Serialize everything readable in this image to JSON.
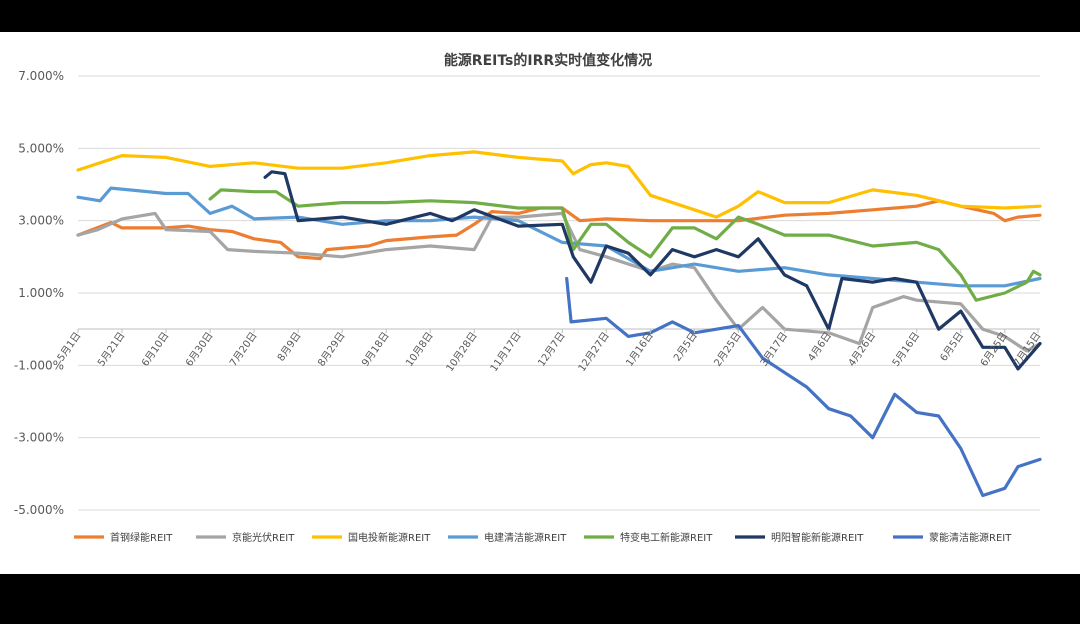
{
  "chart_data": {
    "type": "line",
    "title": "能源REITs的IRR实时值变化情况",
    "xlabel": "",
    "ylabel": "",
    "ylim": [
      -5.0,
      7.0
    ],
    "yticks": [
      "7.000%",
      "5.000%",
      "3.000%",
      "1.000%",
      "-1.000%",
      "-3.000%",
      "-5.000%"
    ],
    "ytick_values": [
      7,
      5,
      3,
      1,
      -1,
      -3,
      -5
    ],
    "xlim": [
      "2023-05-01",
      "2024-07-11"
    ],
    "xticks": [
      "5月1日",
      "5月21日",
      "6月10日",
      "6月30日",
      "7月20日",
      "8月9日",
      "8月29日",
      "9月18日",
      "10月8日",
      "10月28日",
      "11月17日",
      "12月7日",
      "12月27日",
      "1月16日",
      "2月5日",
      "2月25日",
      "3月17日",
      "4月6日",
      "4月26日",
      "5月16日",
      "6月5日",
      "6月25日",
      "7月15日"
    ],
    "xtick_dates": [
      "2023-05-01",
      "2023-05-21",
      "2023-06-10",
      "2023-06-30",
      "2023-07-20",
      "2023-08-09",
      "2023-08-29",
      "2023-09-18",
      "2023-10-08",
      "2023-10-28",
      "2023-11-17",
      "2023-12-07",
      "2023-12-27",
      "2024-01-16",
      "2024-02-05",
      "2024-02-25",
      "2024-03-17",
      "2024-04-06",
      "2024-04-26",
      "2024-05-16",
      "2024-06-05",
      "2024-06-25",
      "2024-07-15"
    ],
    "grid": true,
    "legend_position": "bottom",
    "series": [
      {
        "name": "首钢绿能REIT",
        "color": "#ED7D31",
        "points": [
          [
            "2023-05-01",
            2.6
          ],
          [
            "2023-05-16",
            2.95
          ],
          [
            "2023-05-21",
            2.8
          ],
          [
            "2023-06-10",
            2.8
          ],
          [
            "2023-06-20",
            2.85
          ],
          [
            "2023-06-30",
            2.75
          ],
          [
            "2023-07-10",
            2.7
          ],
          [
            "2023-07-20",
            2.5
          ],
          [
            "2023-08-01",
            2.4
          ],
          [
            "2023-08-09",
            2.0
          ],
          [
            "2023-08-19",
            1.95
          ],
          [
            "2023-08-22",
            2.2
          ],
          [
            "2023-09-10",
            2.3
          ],
          [
            "2023-09-18",
            2.45
          ],
          [
            "2023-10-08",
            2.55
          ],
          [
            "2023-10-20",
            2.6
          ],
          [
            "2023-10-28",
            2.9
          ],
          [
            "2023-11-05",
            3.25
          ],
          [
            "2023-11-17",
            3.2
          ],
          [
            "2023-11-27",
            3.35
          ],
          [
            "2023-12-07",
            3.35
          ],
          [
            "2023-12-15",
            3.0
          ],
          [
            "2023-12-27",
            3.05
          ],
          [
            "2024-01-16",
            3.0
          ],
          [
            "2024-02-05",
            3.0
          ],
          [
            "2024-02-25",
            3.0
          ],
          [
            "2024-03-17",
            3.15
          ],
          [
            "2024-04-06",
            3.2
          ],
          [
            "2024-04-26",
            3.3
          ],
          [
            "2024-05-16",
            3.4
          ],
          [
            "2024-05-26",
            3.55
          ],
          [
            "2024-06-05",
            3.4
          ],
          [
            "2024-06-20",
            3.2
          ],
          [
            "2024-06-25",
            3.0
          ],
          [
            "2024-07-01",
            3.1
          ],
          [
            "2024-07-11",
            3.15
          ]
        ]
      },
      {
        "name": "京能光伏REIT",
        "color": "#A5A5A5",
        "points": [
          [
            "2023-05-01",
            2.6
          ],
          [
            "2023-05-10",
            2.75
          ],
          [
            "2023-05-21",
            3.05
          ],
          [
            "2023-06-05",
            3.2
          ],
          [
            "2023-06-10",
            2.75
          ],
          [
            "2023-06-30",
            2.7
          ],
          [
            "2023-07-08",
            2.2
          ],
          [
            "2023-07-20",
            2.15
          ],
          [
            "2023-08-09",
            2.1
          ],
          [
            "2023-08-29",
            2.0
          ],
          [
            "2023-09-18",
            2.2
          ],
          [
            "2023-10-08",
            2.3
          ],
          [
            "2023-10-28",
            2.2
          ],
          [
            "2023-11-05",
            3.1
          ],
          [
            "2023-11-17",
            3.1
          ],
          [
            "2023-12-07",
            3.2
          ],
          [
            "2023-12-15",
            2.2
          ],
          [
            "2023-12-27",
            2.0
          ],
          [
            "2024-01-16",
            1.6
          ],
          [
            "2024-01-26",
            1.8
          ],
          [
            "2024-02-05",
            1.7
          ],
          [
            "2024-02-15",
            0.8
          ],
          [
            "2024-02-25",
            0.0
          ],
          [
            "2024-03-07",
            0.6
          ],
          [
            "2024-03-17",
            0.0
          ],
          [
            "2024-04-06",
            -0.1
          ],
          [
            "2024-04-20",
            -0.4
          ],
          [
            "2024-04-26",
            0.6
          ],
          [
            "2024-05-10",
            0.9
          ],
          [
            "2024-05-16",
            0.8
          ],
          [
            "2024-06-05",
            0.7
          ],
          [
            "2024-06-15",
            0.0
          ],
          [
            "2024-06-25",
            -0.2
          ],
          [
            "2024-07-05",
            -0.6
          ],
          [
            "2024-07-11",
            -0.4
          ]
        ]
      },
      {
        "name": "国电投新能源REIT",
        "color": "#FFC000",
        "points": [
          [
            "2023-05-01",
            4.4
          ],
          [
            "2023-05-21",
            4.8
          ],
          [
            "2023-06-10",
            4.75
          ],
          [
            "2023-06-30",
            4.5
          ],
          [
            "2023-07-20",
            4.6
          ],
          [
            "2023-08-09",
            4.45
          ],
          [
            "2023-08-29",
            4.45
          ],
          [
            "2023-09-18",
            4.6
          ],
          [
            "2023-10-08",
            4.8
          ],
          [
            "2023-10-28",
            4.9
          ],
          [
            "2023-11-17",
            4.75
          ],
          [
            "2023-12-07",
            4.65
          ],
          [
            "2023-12-12",
            4.3
          ],
          [
            "2023-12-20",
            4.55
          ],
          [
            "2023-12-27",
            4.6
          ],
          [
            "2024-01-06",
            4.5
          ],
          [
            "2024-01-16",
            3.7
          ],
          [
            "2024-02-05",
            3.3
          ],
          [
            "2024-02-15",
            3.1
          ],
          [
            "2024-02-25",
            3.4
          ],
          [
            "2024-03-05",
            3.8
          ],
          [
            "2024-03-17",
            3.5
          ],
          [
            "2024-04-06",
            3.5
          ],
          [
            "2024-04-26",
            3.85
          ],
          [
            "2024-05-16",
            3.7
          ],
          [
            "2024-06-05",
            3.4
          ],
          [
            "2024-06-25",
            3.35
          ],
          [
            "2024-07-11",
            3.4
          ]
        ]
      },
      {
        "name": "电建清洁能源REIT",
        "color": "#5B9BD5",
        "points": [
          [
            "2023-05-01",
            3.65
          ],
          [
            "2023-05-11",
            3.55
          ],
          [
            "2023-05-16",
            3.9
          ],
          [
            "2023-06-10",
            3.75
          ],
          [
            "2023-06-20",
            3.75
          ],
          [
            "2023-06-30",
            3.2
          ],
          [
            "2023-07-10",
            3.4
          ],
          [
            "2023-07-20",
            3.05
          ],
          [
            "2023-08-09",
            3.1
          ],
          [
            "2023-08-29",
            2.9
          ],
          [
            "2023-09-18",
            3.0
          ],
          [
            "2023-10-08",
            3.0
          ],
          [
            "2023-10-28",
            3.1
          ],
          [
            "2023-11-17",
            3.0
          ],
          [
            "2023-12-07",
            2.4
          ],
          [
            "2023-12-27",
            2.3
          ],
          [
            "2024-01-16",
            1.6
          ],
          [
            "2024-02-05",
            1.8
          ],
          [
            "2024-02-25",
            1.6
          ],
          [
            "2024-03-17",
            1.7
          ],
          [
            "2024-04-06",
            1.5
          ],
          [
            "2024-04-26",
            1.4
          ],
          [
            "2024-05-16",
            1.3
          ],
          [
            "2024-06-05",
            1.2
          ],
          [
            "2024-06-25",
            1.2
          ],
          [
            "2024-07-11",
            1.4
          ]
        ]
      },
      {
        "name": "特变电工新能源REIT",
        "color": "#70AD47",
        "points": [
          [
            "2023-06-30",
            3.6
          ],
          [
            "2023-07-05",
            3.85
          ],
          [
            "2023-07-20",
            3.8
          ],
          [
            "2023-07-30",
            3.8
          ],
          [
            "2023-08-09",
            3.4
          ],
          [
            "2023-08-29",
            3.5
          ],
          [
            "2023-09-18",
            3.5
          ],
          [
            "2023-10-08",
            3.55
          ],
          [
            "2023-10-28",
            3.5
          ],
          [
            "2023-11-17",
            3.35
          ],
          [
            "2023-12-07",
            3.35
          ],
          [
            "2023-12-12",
            2.2
          ],
          [
            "2023-12-20",
            2.9
          ],
          [
            "2023-12-27",
            2.9
          ],
          [
            "2024-01-06",
            2.4
          ],
          [
            "2024-01-16",
            2.0
          ],
          [
            "2024-01-26",
            2.8
          ],
          [
            "2024-02-05",
            2.8
          ],
          [
            "2024-02-15",
            2.5
          ],
          [
            "2024-02-25",
            3.1
          ],
          [
            "2024-03-05",
            2.9
          ],
          [
            "2024-03-17",
            2.6
          ],
          [
            "2024-04-06",
            2.6
          ],
          [
            "2024-04-26",
            2.3
          ],
          [
            "2024-05-16",
            2.4
          ],
          [
            "2024-05-26",
            2.2
          ],
          [
            "2024-06-05",
            1.5
          ],
          [
            "2024-06-12",
            0.8
          ],
          [
            "2024-06-25",
            1.0
          ],
          [
            "2024-07-05",
            1.3
          ],
          [
            "2024-07-08",
            1.6
          ],
          [
            "2024-07-11",
            1.5
          ]
        ]
      },
      {
        "name": "明阳智能新能源REIT",
        "color": "#1F3864",
        "points": [
          [
            "2023-07-25",
            4.2
          ],
          [
            "2023-07-28",
            4.35
          ],
          [
            "2023-08-03",
            4.3
          ],
          [
            "2023-08-09",
            3.0
          ],
          [
            "2023-08-29",
            3.1
          ],
          [
            "2023-09-18",
            2.9
          ],
          [
            "2023-10-08",
            3.2
          ],
          [
            "2023-10-18",
            3.0
          ],
          [
            "2023-10-28",
            3.3
          ],
          [
            "2023-11-17",
            2.85
          ],
          [
            "2023-12-07",
            2.9
          ],
          [
            "2023-12-12",
            2.0
          ],
          [
            "2023-12-20",
            1.3
          ],
          [
            "2023-12-27",
            2.3
          ],
          [
            "2024-01-06",
            2.1
          ],
          [
            "2024-01-16",
            1.5
          ],
          [
            "2024-01-26",
            2.2
          ],
          [
            "2024-02-05",
            2.0
          ],
          [
            "2024-02-15",
            2.2
          ],
          [
            "2024-02-25",
            2.0
          ],
          [
            "2024-03-05",
            2.5
          ],
          [
            "2024-03-17",
            1.5
          ],
          [
            "2024-03-27",
            1.2
          ],
          [
            "2024-04-06",
            0.0
          ],
          [
            "2024-04-12",
            1.4
          ],
          [
            "2024-04-26",
            1.3
          ],
          [
            "2024-05-06",
            1.4
          ],
          [
            "2024-05-16",
            1.3
          ],
          [
            "2024-05-26",
            0.0
          ],
          [
            "2024-06-05",
            0.5
          ],
          [
            "2024-06-15",
            -0.5
          ],
          [
            "2024-06-25",
            -0.5
          ],
          [
            "2024-07-01",
            -1.1
          ],
          [
            "2024-07-11",
            -0.4
          ]
        ]
      },
      {
        "name": "蒙能清洁能源REIT",
        "color": "#4472C4",
        "points": [
          [
            "2023-12-09",
            1.4
          ],
          [
            "2023-12-11",
            0.2
          ],
          [
            "2023-12-27",
            0.3
          ],
          [
            "2024-01-06",
            -0.2
          ],
          [
            "2024-01-16",
            -0.1
          ],
          [
            "2024-01-26",
            0.2
          ],
          [
            "2024-02-05",
            -0.1
          ],
          [
            "2024-02-15",
            0.0
          ],
          [
            "2024-02-25",
            0.1
          ],
          [
            "2024-03-07",
            -0.8
          ],
          [
            "2024-03-17",
            -1.2
          ],
          [
            "2024-03-27",
            -1.6
          ],
          [
            "2024-04-06",
            -2.2
          ],
          [
            "2024-04-16",
            -2.4
          ],
          [
            "2024-04-26",
            -3.0
          ],
          [
            "2024-05-06",
            -1.8
          ],
          [
            "2024-05-16",
            -2.3
          ],
          [
            "2024-05-26",
            -2.4
          ],
          [
            "2024-06-05",
            -3.3
          ],
          [
            "2024-06-15",
            -4.6
          ],
          [
            "2024-06-25",
            -4.4
          ],
          [
            "2024-07-01",
            -3.8
          ],
          [
            "2024-07-11",
            -3.6
          ]
        ]
      }
    ]
  }
}
